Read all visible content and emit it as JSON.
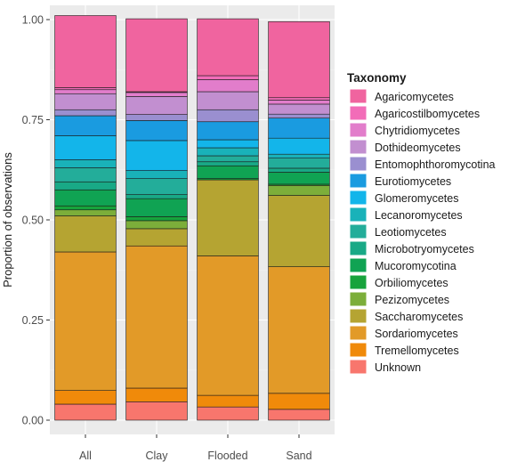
{
  "chart_data": {
    "type": "bar",
    "stacked": true,
    "ylabel": "Proportion of observations",
    "xlabel": "",
    "ylim": [
      0,
      1
    ],
    "y_ticks": [
      "0.00",
      "0.25",
      "0.50",
      "0.75",
      "1.00"
    ],
    "y_tick_values": [
      0,
      0.25,
      0.5,
      0.75,
      1.0
    ],
    "grid": true,
    "legend_position": "right",
    "legend_title": "Taxonomy",
    "categories": [
      "All",
      "Clay",
      "Flooded",
      "Sand"
    ],
    "series": [
      {
        "name": "Unknown",
        "color": "#F8766D",
        "values": [
          0.04,
          0.046,
          0.033,
          0.027
        ]
      },
      {
        "name": "Tremellomycetes",
        "color": "#F08A0A",
        "values": [
          0.034,
          0.034,
          0.029,
          0.04
        ]
      },
      {
        "name": "Sordariomycetes",
        "color": "#E29A28",
        "values": [
          0.346,
          0.355,
          0.348,
          0.316
        ]
      },
      {
        "name": "Saccharomycetes",
        "color": "#B5A432",
        "values": [
          0.09,
          0.043,
          0.19,
          0.178
        ]
      },
      {
        "name": "Pezizomycetes",
        "color": "#7CAE3A",
        "values": [
          0.015,
          0.02,
          0.0,
          0.025
        ]
      },
      {
        "name": "Orbiliomycetes",
        "color": "#17A33C",
        "values": [
          0.01,
          0.01,
          0.003,
          0.003
        ]
      },
      {
        "name": "Mucoromycotina",
        "color": "#10A353",
        "values": [
          0.04,
          0.045,
          0.032,
          0.03
        ]
      },
      {
        "name": "Microbotryomycetes",
        "color": "#19A986",
        "values": [
          0.02,
          0.01,
          0.01,
          0.01
        ]
      },
      {
        "name": "Leotiomycetes",
        "color": "#23AD9A",
        "values": [
          0.035,
          0.04,
          0.015,
          0.025
        ]
      },
      {
        "name": "Lecanoromycetes",
        "color": "#19B2B9",
        "values": [
          0.02,
          0.02,
          0.02,
          0.01
        ]
      },
      {
        "name": "Glomeromycetes",
        "color": "#13B5EA",
        "values": [
          0.06,
          0.075,
          0.02,
          0.04
        ]
      },
      {
        "name": "Eurotiomycetes",
        "color": "#1A9BE0",
        "values": [
          0.05,
          0.05,
          0.045,
          0.05
        ]
      },
      {
        "name": "Entomophthoromycotina",
        "color": "#9A8FD0",
        "values": [
          0.015,
          0.015,
          0.03,
          0.01
        ]
      },
      {
        "name": "Dothideomycetes",
        "color": "#C28FD0",
        "values": [
          0.04,
          0.045,
          0.045,
          0.025
        ]
      },
      {
        "name": "Chytridiomycetes",
        "color": "#E27DCB",
        "values": [
          0.01,
          0.01,
          0.03,
          0.01
        ]
      },
      {
        "name": "Agaricostilbomycetes",
        "color": "#F26CB8",
        "values": [
          0.005,
          0.002,
          0.01,
          0.006
        ]
      },
      {
        "name": "Agaricomycetes",
        "color": "#F0649F",
        "values": [
          0.18,
          0.182,
          0.142,
          0.19
        ]
      }
    ]
  }
}
